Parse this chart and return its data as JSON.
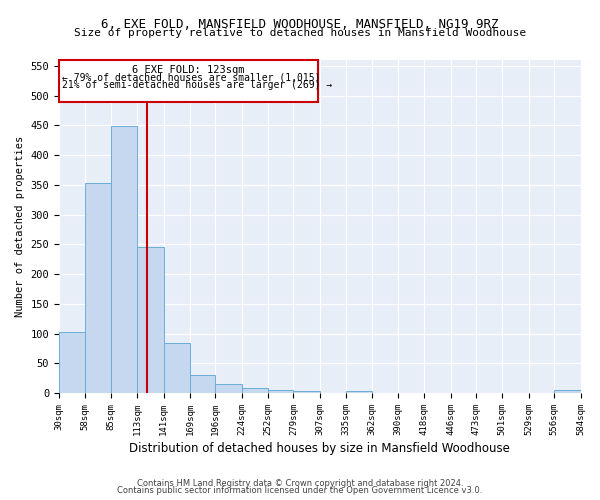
{
  "title1": "6, EXE FOLD, MANSFIELD WOODHOUSE, MANSFIELD, NG19 9RZ",
  "title2": "Size of property relative to detached houses in Mansfield Woodhouse",
  "xlabel": "Distribution of detached houses by size in Mansfield Woodhouse",
  "ylabel": "Number of detached properties",
  "footer1": "Contains HM Land Registry data © Crown copyright and database right 2024.",
  "footer2": "Contains public sector information licensed under the Open Government Licence v3.0.",
  "annotation_line1": "6 EXE FOLD: 123sqm",
  "annotation_line2": "← 79% of detached houses are smaller (1,015)",
  "annotation_line3": "21% of semi-detached houses are larger (269) →",
  "property_size": 123,
  "bin_edges": [
    30,
    58,
    85,
    113,
    141,
    169,
    196,
    224,
    252,
    279,
    307,
    335,
    362,
    390,
    418,
    446,
    473,
    501,
    529,
    556,
    584
  ],
  "bar_heights": [
    103,
    354,
    449,
    246,
    85,
    30,
    15,
    8,
    5,
    3,
    0,
    3,
    0,
    0,
    0,
    0,
    0,
    0,
    0,
    5
  ],
  "bar_color": "#c5d8ef",
  "bar_edge_color": "#6aaed6",
  "vline_color": "#cc0000",
  "bg_color": "#e8eef8",
  "annotation_box_color": "#ffffff",
  "annotation_box_edge": "#cc0000",
  "ylim": [
    0,
    560
  ],
  "yticks": [
    0,
    50,
    100,
    150,
    200,
    250,
    300,
    350,
    400,
    450,
    500,
    550
  ]
}
